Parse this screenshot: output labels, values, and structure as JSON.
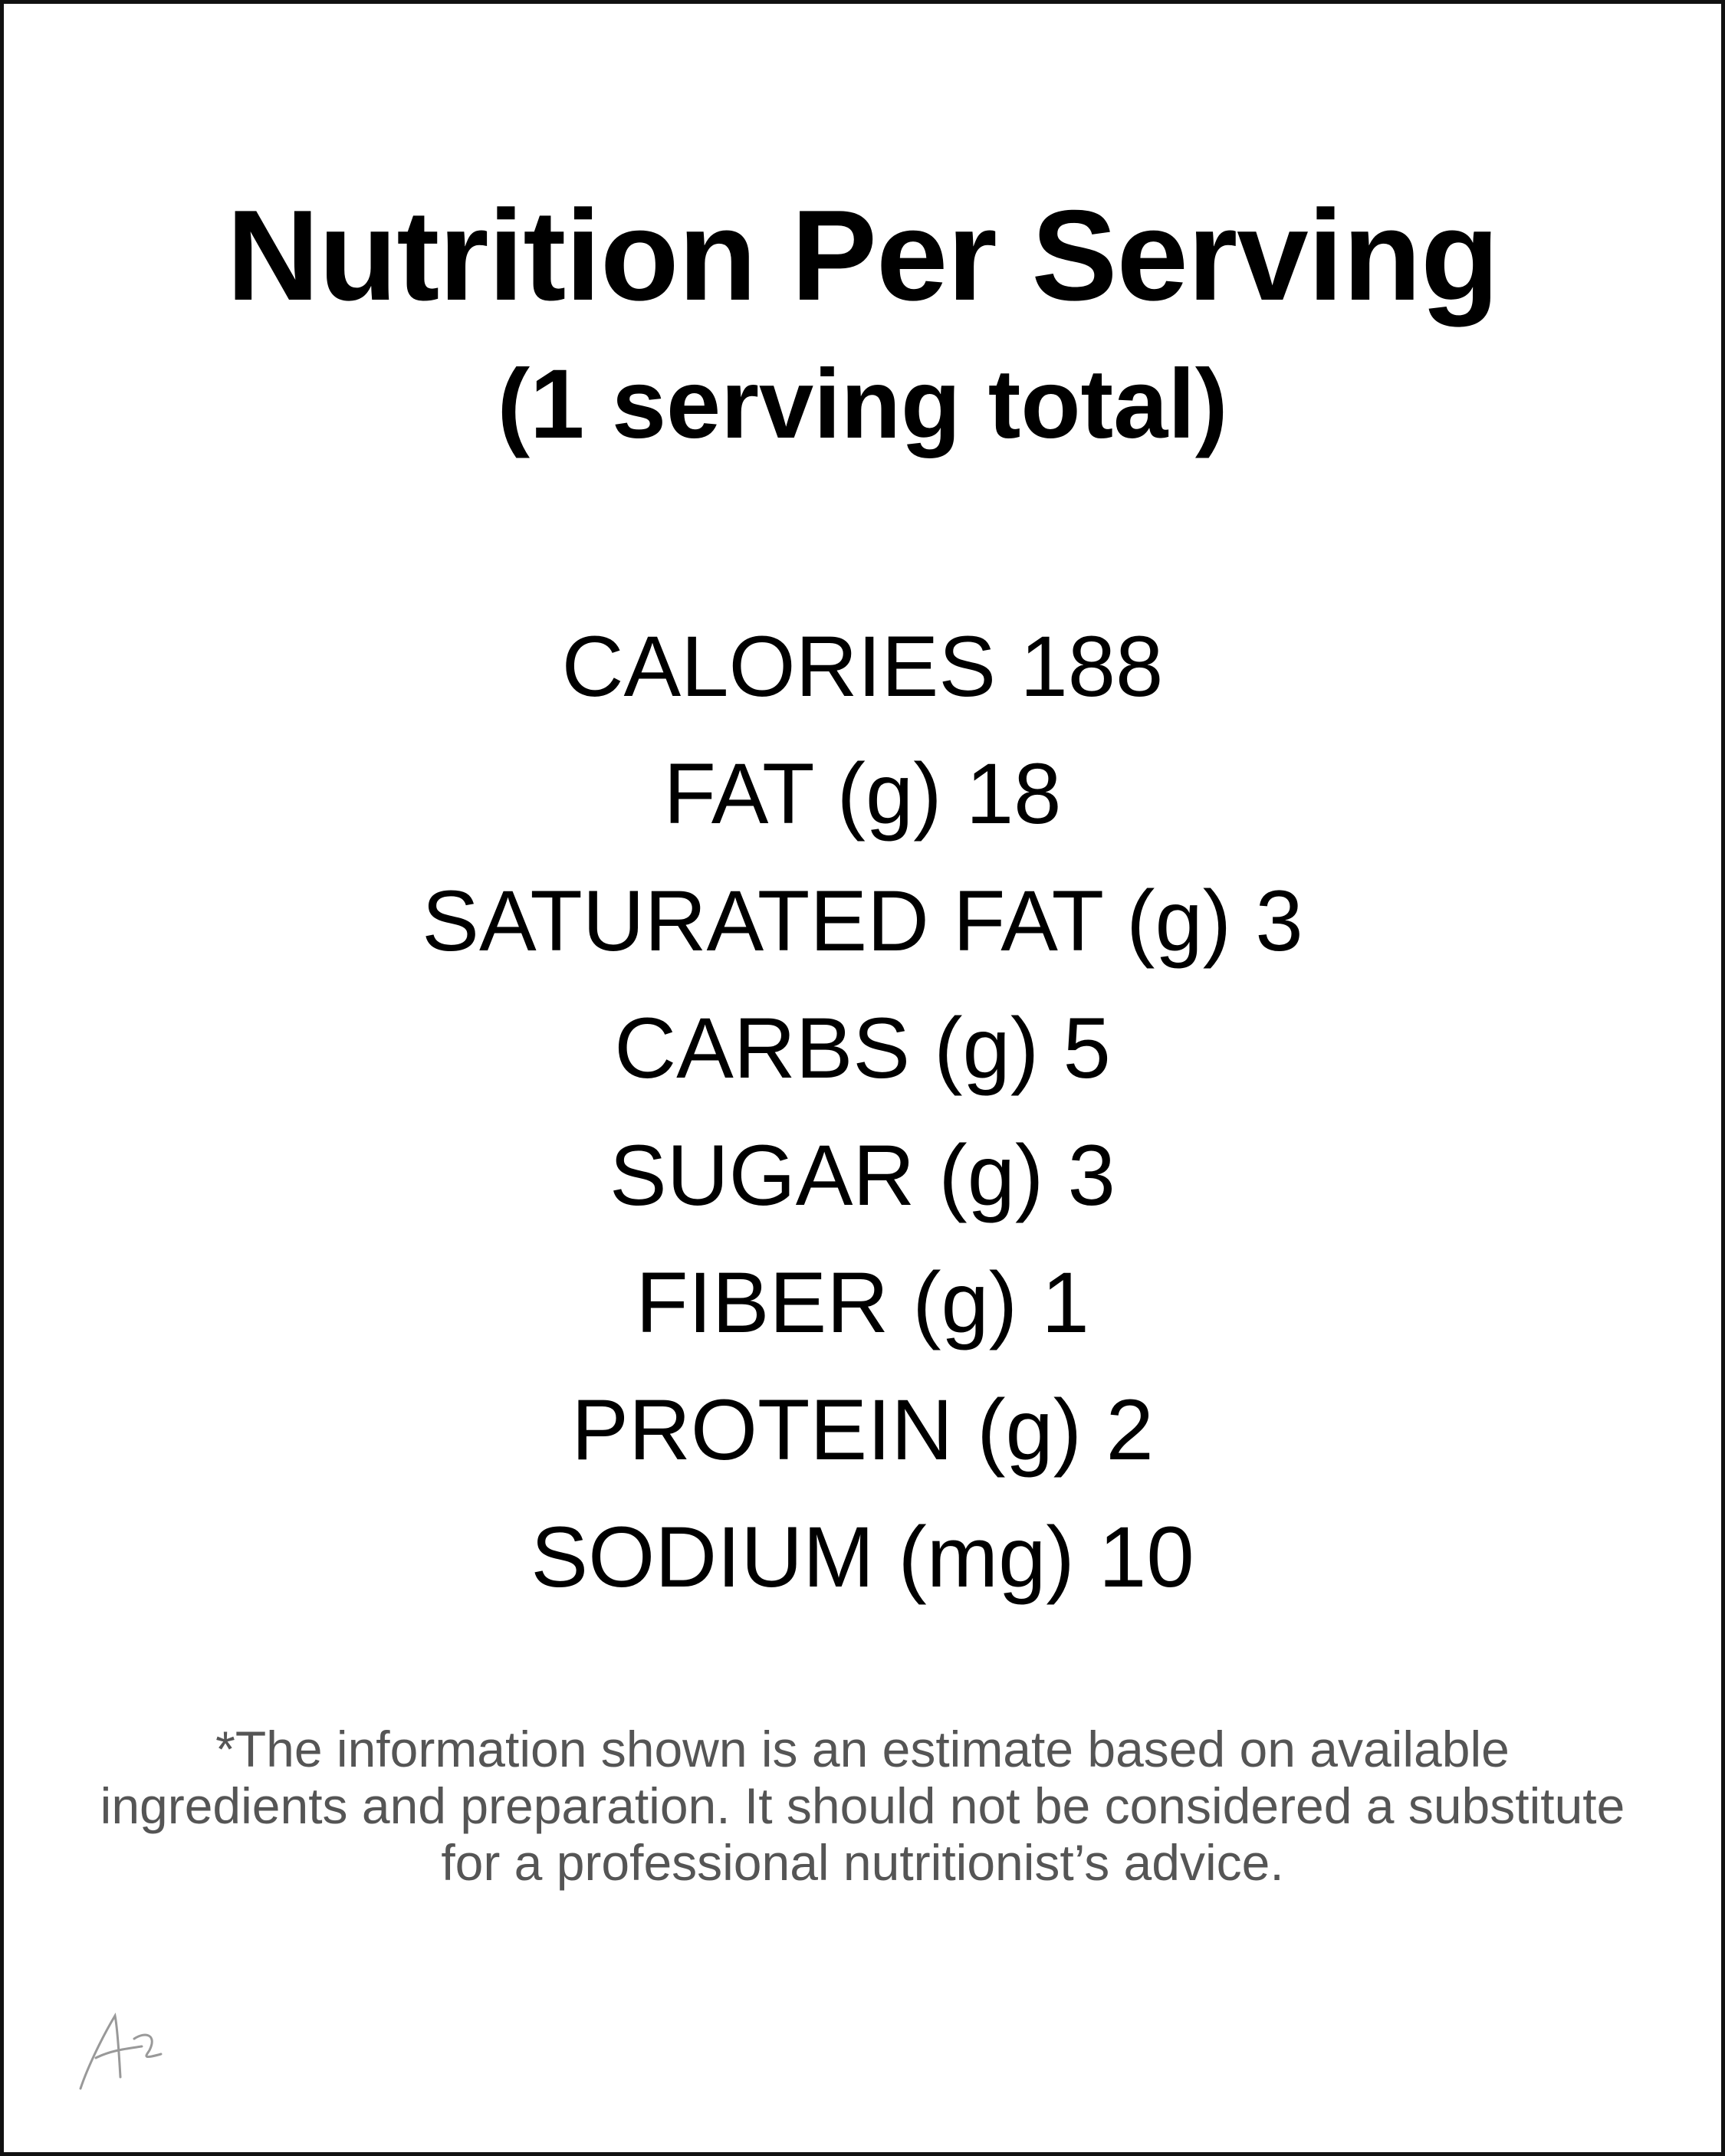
{
  "header": {
    "title": "Nutrition Per Serving",
    "subtitle": "(1 serving total)"
  },
  "nutrients": [
    {
      "label": "CALORIES",
      "value": 188
    },
    {
      "label": "FAT (g)",
      "value": 18
    },
    {
      "label": "SATURATED FAT (g)",
      "value": 3
    },
    {
      "label": "CARBS (g)",
      "value": 5
    },
    {
      "label": "SUGAR (g)",
      "value": 3
    },
    {
      "label": "FIBER (g)",
      "value": 1
    },
    {
      "label": "PROTEIN (g)",
      "value": 2
    },
    {
      "label": "SODIUM (mg)",
      "value": 10
    }
  ],
  "footnote": "*The information shown is an estimate based on available ingredients and preparation. It should not be considered a substitute for a professional nutritionist’s advice."
}
